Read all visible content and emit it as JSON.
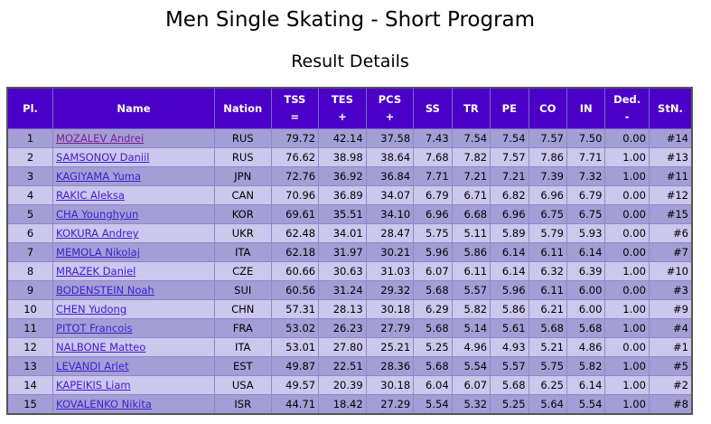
{
  "title": "Men Single Skating - Short Program",
  "subtitle": "Result Details",
  "colors": {
    "header_bg": "#4b00c8",
    "row_odd": "#a49ed6",
    "row_even": "#cbc7ed",
    "link": "#3e1fd0"
  },
  "headers": {
    "pl": "Pl.",
    "name": "Name",
    "nation": "Nation",
    "tss": "TSS",
    "tss_sym": "=",
    "tes": "TES",
    "tes_sym": "+",
    "pcs": "PCS",
    "pcs_sym": "+",
    "ss": "SS",
    "tr": "TR",
    "pe": "PE",
    "co": "CO",
    "in": "IN",
    "ded": "Ded.",
    "ded_sym": "-",
    "stn": "StN."
  },
  "rows": [
    {
      "pl": "1",
      "name": "MOZALEV Andrei",
      "nation": "RUS",
      "tss": "79.72",
      "tes": "42.14",
      "pcs": "37.58",
      "ss": "7.43",
      "tr": "7.54",
      "pe": "7.54",
      "co": "7.57",
      "in": "7.50",
      "ded": "0.00",
      "stn": "#14"
    },
    {
      "pl": "2",
      "name": "SAMSONOV Daniil",
      "nation": "RUS",
      "tss": "76.62",
      "tes": "38.98",
      "pcs": "38.64",
      "ss": "7.68",
      "tr": "7.82",
      "pe": "7.57",
      "co": "7.86",
      "in": "7.71",
      "ded": "1.00",
      "stn": "#13"
    },
    {
      "pl": "3",
      "name": "KAGIYAMA Yuma",
      "nation": "JPN",
      "tss": "72.76",
      "tes": "36.92",
      "pcs": "36.84",
      "ss": "7.71",
      "tr": "7.21",
      "pe": "7.21",
      "co": "7.39",
      "in": "7.32",
      "ded": "1.00",
      "stn": "#11"
    },
    {
      "pl": "4",
      "name": "RAKIC Aleksa",
      "nation": "CAN",
      "tss": "70.96",
      "tes": "36.89",
      "pcs": "34.07",
      "ss": "6.79",
      "tr": "6.71",
      "pe": "6.82",
      "co": "6.96",
      "in": "6.79",
      "ded": "0.00",
      "stn": "#12"
    },
    {
      "pl": "5",
      "name": "CHA Younghyun",
      "nation": "KOR",
      "tss": "69.61",
      "tes": "35.51",
      "pcs": "34.10",
      "ss": "6.96",
      "tr": "6.68",
      "pe": "6.96",
      "co": "6.75",
      "in": "6.75",
      "ded": "0.00",
      "stn": "#15"
    },
    {
      "pl": "6",
      "name": "KOKURA Andrey",
      "nation": "UKR",
      "tss": "62.48",
      "tes": "34.01",
      "pcs": "28.47",
      "ss": "5.75",
      "tr": "5.11",
      "pe": "5.89",
      "co": "5.79",
      "in": "5.93",
      "ded": "0.00",
      "stn": "#6"
    },
    {
      "pl": "7",
      "name": "MEMOLA Nikolaj",
      "nation": "ITA",
      "tss": "62.18",
      "tes": "31.97",
      "pcs": "30.21",
      "ss": "5.96",
      "tr": "5.86",
      "pe": "6.14",
      "co": "6.11",
      "in": "6.14",
      "ded": "0.00",
      "stn": "#7"
    },
    {
      "pl": "8",
      "name": "MRAZEK Daniel",
      "nation": "CZE",
      "tss": "60.66",
      "tes": "30.63",
      "pcs": "31.03",
      "ss": "6.07",
      "tr": "6.11",
      "pe": "6.14",
      "co": "6.32",
      "in": "6.39",
      "ded": "1.00",
      "stn": "#10"
    },
    {
      "pl": "9",
      "name": "BODENSTEIN Noah",
      "nation": "SUI",
      "tss": "60.56",
      "tes": "31.24",
      "pcs": "29.32",
      "ss": "5.68",
      "tr": "5.57",
      "pe": "5.96",
      "co": "6.11",
      "in": "6.00",
      "ded": "0.00",
      "stn": "#3"
    },
    {
      "pl": "10",
      "name": "CHEN Yudong",
      "nation": "CHN",
      "tss": "57.31",
      "tes": "28.13",
      "pcs": "30.18",
      "ss": "6.29",
      "tr": "5.82",
      "pe": "5.86",
      "co": "6.21",
      "in": "6.00",
      "ded": "1.00",
      "stn": "#9"
    },
    {
      "pl": "11",
      "name": "PITOT Francois",
      "nation": "FRA",
      "tss": "53.02",
      "tes": "26.23",
      "pcs": "27.79",
      "ss": "5.68",
      "tr": "5.14",
      "pe": "5.61",
      "co": "5.68",
      "in": "5.68",
      "ded": "1.00",
      "stn": "#4"
    },
    {
      "pl": "12",
      "name": "NALBONE Matteo",
      "nation": "ITA",
      "tss": "53.01",
      "tes": "27.80",
      "pcs": "25.21",
      "ss": "5.25",
      "tr": "4.96",
      "pe": "4.93",
      "co": "5.21",
      "in": "4.86",
      "ded": "0.00",
      "stn": "#1"
    },
    {
      "pl": "13",
      "name": "LEVANDI Arlet",
      "nation": "EST",
      "tss": "49.87",
      "tes": "22.51",
      "pcs": "28.36",
      "ss": "5.68",
      "tr": "5.54",
      "pe": "5.57",
      "co": "5.75",
      "in": "5.82",
      "ded": "1.00",
      "stn": "#5"
    },
    {
      "pl": "14",
      "name": "KAPEIKIS Liam",
      "nation": "USA",
      "tss": "49.57",
      "tes": "20.39",
      "pcs": "30.18",
      "ss": "6.04",
      "tr": "6.07",
      "pe": "5.68",
      "co": "6.25",
      "in": "6.14",
      "ded": "1.00",
      "stn": "#2"
    },
    {
      "pl": "15",
      "name": "KOVALENKO Nikita",
      "nation": "ISR",
      "tss": "44.71",
      "tes": "18.42",
      "pcs": "27.29",
      "ss": "5.54",
      "tr": "5.32",
      "pe": "5.25",
      "co": "5.64",
      "in": "5.54",
      "ded": "1.00",
      "stn": "#8"
    }
  ]
}
